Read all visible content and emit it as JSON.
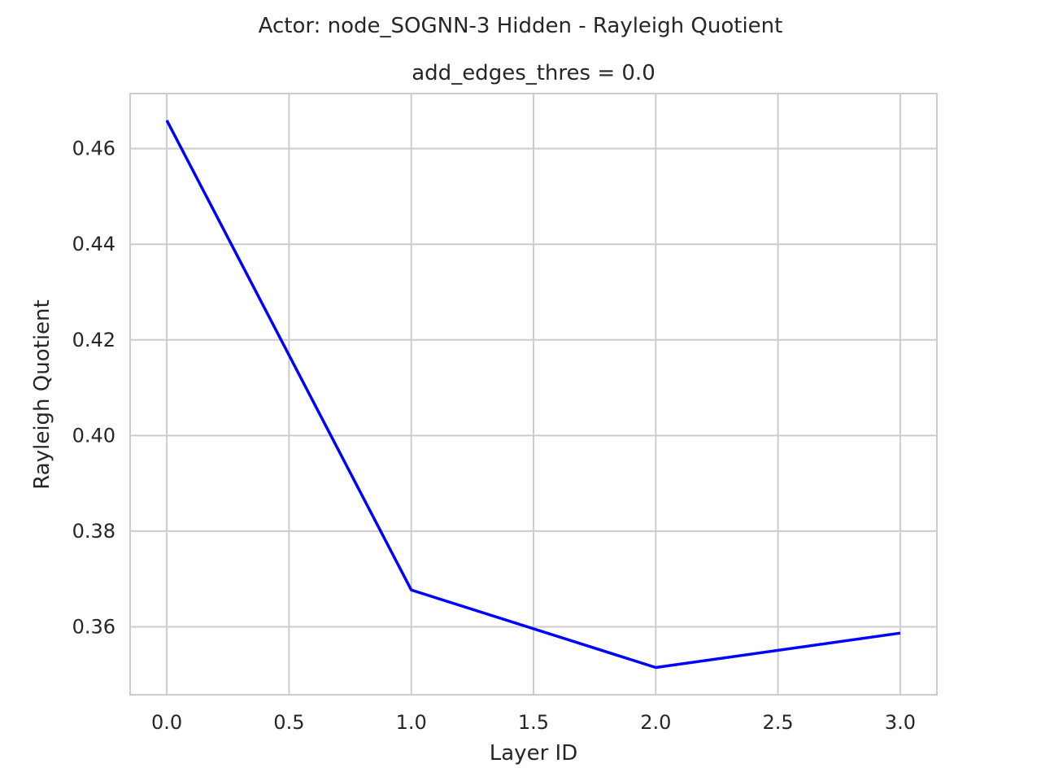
{
  "chart_data": {
    "type": "line",
    "suptitle": "Actor: node_SOGNN-3 Hidden - Rayleigh Quotient",
    "title": "add_edges_thres = 0.0",
    "xlabel": "Layer ID",
    "ylabel": "Rayleigh Quotient",
    "xlim": [
      -0.15,
      3.15
    ],
    "ylim": [
      0.3458,
      0.4715
    ],
    "xticks": [
      0.0,
      0.5,
      1.0,
      1.5,
      2.0,
      2.5,
      3.0
    ],
    "xtick_labels": [
      "0.0",
      "0.5",
      "1.0",
      "1.5",
      "2.0",
      "2.5",
      "3.0"
    ],
    "yticks": [
      0.36,
      0.38,
      0.4,
      0.42,
      0.44,
      0.46
    ],
    "ytick_labels": [
      "0.36",
      "0.38",
      "0.40",
      "0.42",
      "0.44",
      "0.46"
    ],
    "grid": true,
    "series": [
      {
        "color": "#0000ff",
        "x": [
          0,
          1,
          2,
          3
        ],
        "y": [
          0.4659,
          0.3677,
          0.3515,
          0.3587
        ]
      }
    ]
  }
}
